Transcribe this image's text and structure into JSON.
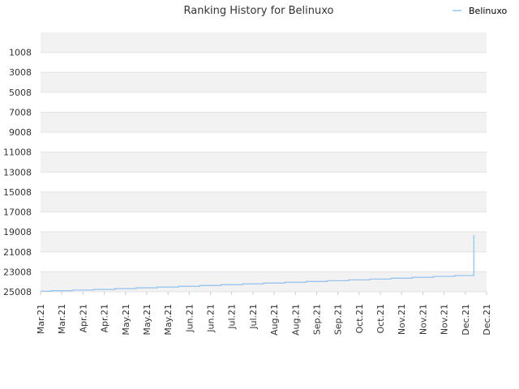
{
  "chart_data": {
    "type": "line",
    "title": "Ranking History for Belinuxo",
    "xlabel": "",
    "ylabel": "",
    "y_reversed": true,
    "ylim": [
      25008,
      0
    ],
    "y_ticks": [
      "1008",
      "3008",
      "5008",
      "7008",
      "9008",
      "11008",
      "13008",
      "15008",
      "17008",
      "19008",
      "21008",
      "23008",
      "25008"
    ],
    "x_ticks": [
      "Mar.21",
      "Mar.21",
      "Apr.21",
      "Apr.21",
      "May.21",
      "May.21",
      "May.21",
      "Jun.21",
      "Jun.21",
      "Jul.21",
      "Jul.21",
      "Aug.21",
      "Aug.21",
      "Sep.21",
      "Sep.21",
      "Oct.21",
      "Oct.21",
      "Nov.21",
      "Nov.21",
      "Nov.21",
      "Dec.21",
      "Dec.21"
    ],
    "grid": true,
    "legend_position": "top-right",
    "series": [
      {
        "name": "Belinuxo",
        "color": "#99c4f0",
        "x": [
          0,
          0.5,
          0.5,
          1,
          1.5,
          1.5,
          2,
          2.5,
          2.5,
          3,
          3.5,
          3.5,
          4,
          4.5,
          4.5,
          5,
          5.5,
          5.5,
          6,
          6.5,
          6.5,
          7,
          7.5,
          7.5,
          8,
          8.5,
          8.5,
          9,
          9.5,
          9.5,
          10,
          10.5,
          10.5,
          11,
          11.5,
          11.5,
          12,
          12.5,
          12.5,
          13,
          13.5,
          13.5,
          14,
          14.5,
          14.5,
          15,
          15.5,
          15.5,
          16,
          16.5,
          16.5,
          17,
          17.5,
          17.5,
          18,
          18.5,
          18.5,
          19,
          19.5,
          19.5,
          20,
          20.4,
          20.4,
          20.4
        ],
        "y": [
          24960,
          24960,
          24900,
          24900,
          24900,
          24840,
          24840,
          24840,
          24780,
          24780,
          24780,
          24700,
          24700,
          24700,
          24620,
          24620,
          24620,
          24540,
          24540,
          24540,
          24460,
          24460,
          24460,
          24380,
          24380,
          24380,
          24300,
          24300,
          24300,
          24220,
          24220,
          24220,
          24140,
          24140,
          24140,
          24060,
          24060,
          24060,
          23980,
          23980,
          23980,
          23900,
          23900,
          23900,
          23820,
          23820,
          23820,
          23740,
          23740,
          23740,
          23650,
          23650,
          23650,
          23560,
          23560,
          23560,
          23470,
          23470,
          23470,
          23380,
          23380,
          23380,
          23200,
          19300
        ]
      }
    ]
  }
}
